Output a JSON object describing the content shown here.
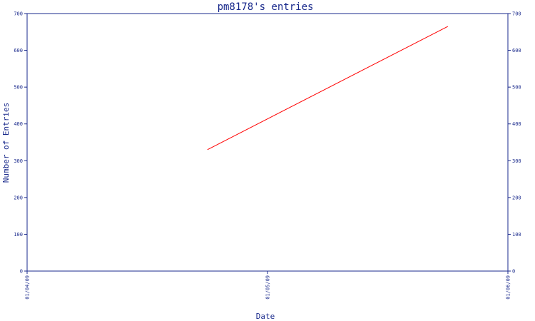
{
  "chart_data": {
    "type": "line",
    "title": "pm8178's entries",
    "xlabel": "Date",
    "ylabel": "Number of Entries",
    "x_tick_labels": [
      "01/04/09",
      "01/05/09",
      "01/06/09"
    ],
    "y_ticks": [
      0,
      100,
      200,
      300,
      400,
      500,
      600,
      700
    ],
    "ylim": [
      0,
      700
    ],
    "xlim": [
      "2009-01-04",
      "2009-01-06"
    ],
    "series": [
      {
        "color": "#ff0000",
        "x": [
          "2009-01-04 18:00",
          "2009-01-05 18:00"
        ],
        "y": [
          330,
          665
        ]
      }
    ],
    "grid": false,
    "axis_color": "#1a2a8c",
    "right_axis_mirrors_left": true
  }
}
